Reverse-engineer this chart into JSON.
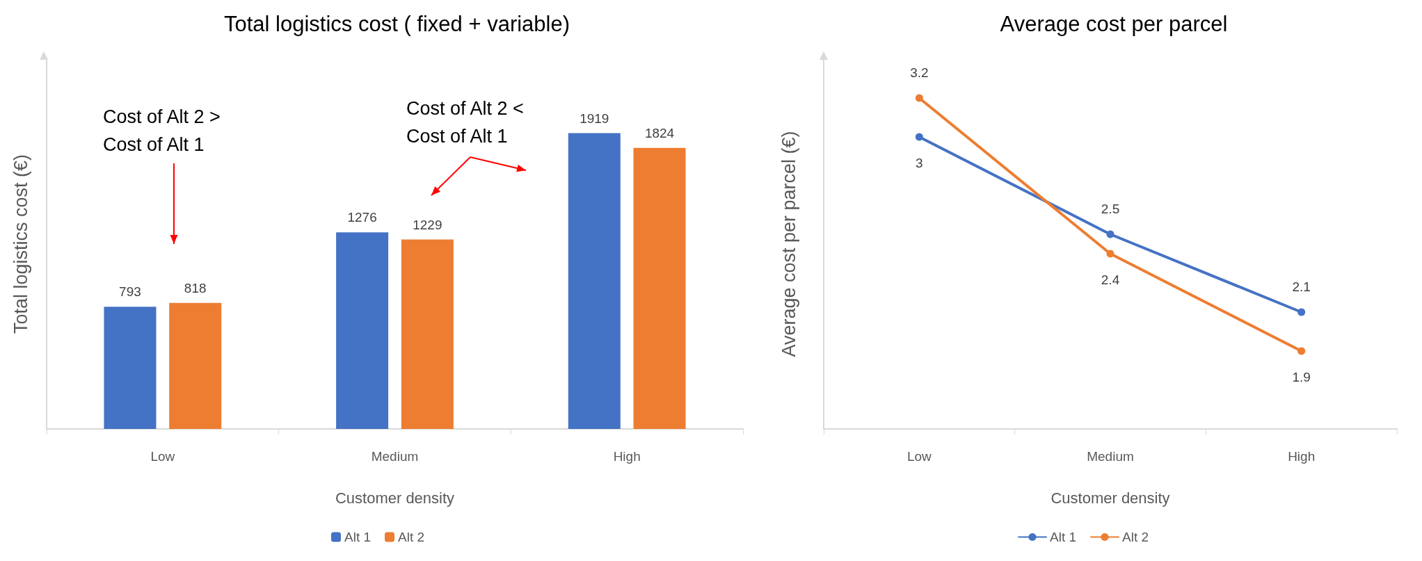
{
  "chart_data": [
    {
      "type": "bar",
      "title": "Total logistics cost ( fixed + variable)",
      "xlabel": "Customer density",
      "ylabel": "Total logistics cost (€)",
      "categories": [
        "Low",
        "Medium",
        "High"
      ],
      "ylim": [
        0,
        2400
      ],
      "series": [
        {
          "name": "Alt 1",
          "color": "#4472c4",
          "values": [
            793,
            1276,
            1919
          ]
        },
        {
          "name": "Alt 2",
          "color": "#ed7d31",
          "values": [
            818,
            1229,
            1824
          ]
        }
      ],
      "data_labels": true,
      "legend": "bottom",
      "grid": false,
      "annotations": [
        "Cost of Alt 2 >\nCost of Alt 1",
        "Cost of Alt 2 <\nCost of Alt 1"
      ]
    },
    {
      "type": "line",
      "title": "Average cost per parcel",
      "xlabel": "Customer density",
      "ylabel": "Average cost per parcel (€)",
      "categories": [
        "Low",
        "Medium",
        "High"
      ],
      "ylim": [
        1.5,
        3.4
      ],
      "series": [
        {
          "name": "Alt 1",
          "color": "#4472c4",
          "values": [
            3,
            2.5,
            2.1
          ]
        },
        {
          "name": "Alt 2",
          "color": "#ed7d31",
          "values": [
            3.2,
            2.4,
            1.9
          ]
        }
      ],
      "data_labels": true,
      "legend": "bottom",
      "grid": false,
      "marker": "circle",
      "line_style": "solid"
    }
  ]
}
